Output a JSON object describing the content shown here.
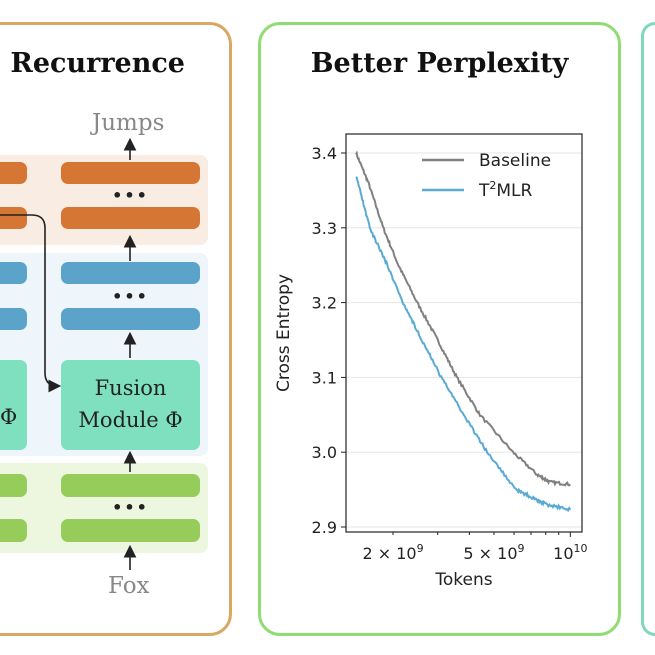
{
  "left_panel": {
    "title": "Recurrence",
    "output_label": "Jumps",
    "input_label": "Fox",
    "fusion_label_line1": "Fusion",
    "fusion_label_line2": "Module Φ",
    "fusion_left_partial": "Φ",
    "ellipsis": "•••",
    "colors": {
      "border": "#d9a862",
      "orange": "#d67634",
      "blue": "#5ba3c9",
      "teal": "#7fe0c0",
      "green": "#96cc5a"
    }
  },
  "middle_panel": {
    "title": "Better Perplexity",
    "border_color": "#8fdc72"
  },
  "right_panel": {
    "border_color": "#7fd8b8"
  },
  "chart_data": {
    "type": "line",
    "title": "",
    "xlabel": "Tokens",
    "ylabel": "Cross Entropy",
    "xscale": "log",
    "xlim": [
      1350000000.0,
      10800000000.0
    ],
    "ylim": [
      2.89,
      3.42
    ],
    "yticks": [
      2.9,
      3.0,
      3.1,
      3.2,
      3.3,
      3.4
    ],
    "ytick_labels": [
      "2.9",
      "3.0",
      "3.1",
      "3.2",
      "3.3",
      "3.4"
    ],
    "xtick_labels": [
      {
        "value": 2000000000.0,
        "base": "2 × 10",
        "exp": "9"
      },
      {
        "value": 5000000000.0,
        "base": "5 × 10",
        "exp": "9"
      },
      {
        "value": 10000000000.0,
        "base": "10",
        "exp": "10"
      }
    ],
    "grid": "horizontal",
    "legend": "top-right",
    "series": [
      {
        "name": "Baseline",
        "name_base": "Baseline",
        "name_sup": "",
        "color": "#808080",
        "x": [
          1430000000.0,
          1600000000.0,
          1830000000.0,
          2100000000.0,
          2490000000.0,
          3000000000.0,
          3570000000.0,
          4400000000.0,
          5940000000.0,
          7400000000.0,
          8300000000.0,
          10000000000.0
        ],
        "y": [
          3.4,
          3.36,
          3.3,
          3.25,
          3.2,
          3.15,
          3.1,
          3.05,
          3.0,
          2.97,
          2.96,
          2.957
        ]
      },
      {
        "name": "T2MLR",
        "name_base": "T",
        "name_sup": "2",
        "name_rest": "MLR",
        "color": "#5aaad4",
        "x": [
          1430000000.0,
          1620000000.0,
          1900000000.0,
          2190000000.0,
          2600000000.0,
          3100000000.0,
          3800000000.0,
          4700000000.0,
          6100000000.0,
          7000000000.0,
          8100000000.0,
          10000000000.0
        ],
        "y": [
          3.37,
          3.3,
          3.25,
          3.2,
          3.15,
          3.1,
          3.05,
          3.0,
          2.95,
          2.94,
          2.93,
          2.923
        ]
      }
    ]
  }
}
